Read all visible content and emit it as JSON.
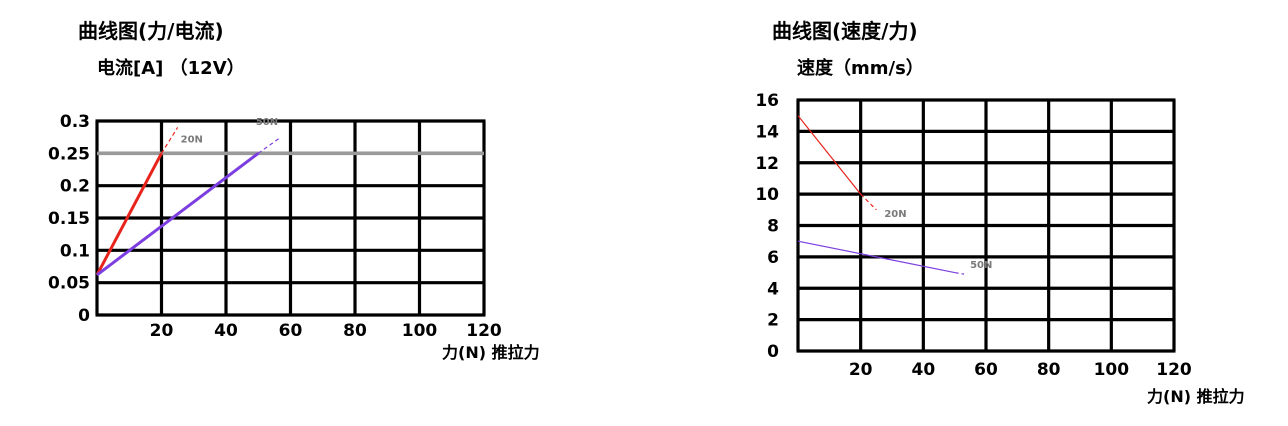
{
  "chart_data": [
    {
      "type": "line",
      "title": "曲线图(力/电流)",
      "ylabel": "电流[A] （12V）",
      "xlabel": "力(N) 推拉力",
      "xlim": [
        0,
        120
      ],
      "ylim": [
        0,
        0.3
      ],
      "x_ticks": [
        "20",
        "40",
        "60",
        "80",
        "100",
        "120"
      ],
      "y_ticks": [
        "0",
        "0.05",
        "0.1",
        "0.15",
        "0.2",
        "0.25",
        "0.3"
      ],
      "grid": true,
      "reference_line": {
        "y": 0.25,
        "color": "#9a9a9a"
      },
      "series": [
        {
          "name": "20N",
          "color": "#e8231c",
          "x": [
            0,
            20
          ],
          "y": [
            0.062,
            0.25
          ],
          "extension": {
            "x": [
              20,
              25
            ],
            "y": [
              0.25,
              0.29
            ]
          }
        },
        {
          "name": "50N",
          "color": "#7c3ee0",
          "x": [
            0,
            50
          ],
          "y": [
            0.062,
            0.25
          ],
          "extension": {
            "x": [
              50,
              57
            ],
            "y": [
              0.25,
              0.275
            ]
          }
        }
      ]
    },
    {
      "type": "line",
      "title": "曲线图(速度/力)",
      "ylabel": "速度（mm/s）",
      "xlabel": "力(N) 推拉力",
      "xlim": [
        0,
        120
      ],
      "ylim": [
        0,
        16
      ],
      "x_ticks": [
        "20",
        "40",
        "60",
        "80",
        "100",
        "120"
      ],
      "y_ticks": [
        "0",
        "2",
        "4",
        "6",
        "8",
        "10",
        "12",
        "14",
        "16"
      ],
      "grid": true,
      "series": [
        {
          "name": "20N",
          "color": "#e8231c",
          "x": [
            0,
            20
          ],
          "y": [
            15.0,
            10.0
          ],
          "extension": {
            "x": [
              20,
              25
            ],
            "y": [
              10.0,
              9.0
            ]
          }
        },
        {
          "name": "50N",
          "color": "#7c3ee0",
          "x": [
            0,
            50
          ],
          "y": [
            7.0,
            5.0
          ],
          "extension": {
            "x": [
              50,
              53
            ],
            "y": [
              5.0,
              4.9
            ]
          }
        }
      ]
    }
  ]
}
